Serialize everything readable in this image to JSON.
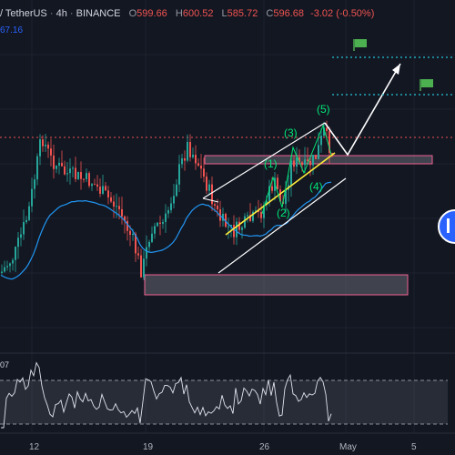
{
  "header": {
    "pair": "/ TetherUS",
    "interval": "4h",
    "exchange": "BINANCE",
    "o_label": "O",
    "o": "599.66",
    "h_label": "H",
    "h": "600.52",
    "l_label": "L",
    "l": "585.72",
    "c_label": "C",
    "c": "596.68",
    "change": "-3.02 (-0.50%)"
  },
  "side_value": "67.16",
  "rsi_value": "07",
  "x_ticks": [
    "12",
    "19",
    "26",
    "May",
    "5"
  ],
  "colors": {
    "background": "#131722",
    "up": "#26a69a",
    "down": "#ef5350",
    "ma": "#2196f3",
    "wave_label": "#00e676",
    "channel": "#ffffff",
    "yellow": "#ffeb3b",
    "target_line": "#26c6da",
    "resistance": "#ef5350",
    "zone": "#787b86",
    "flag": "#4caf50"
  },
  "icons": [
    "green-flag-icon",
    "scroll-right-icon"
  ],
  "chart_data": {
    "type": "candlestick",
    "wave_labels": [
      "(1)",
      "(2)",
      "(3)",
      "(4)",
      "(5)"
    ],
    "x_ticks": [
      "12",
      "19",
      "26",
      "May",
      "5"
    ],
    "grid": true
  }
}
